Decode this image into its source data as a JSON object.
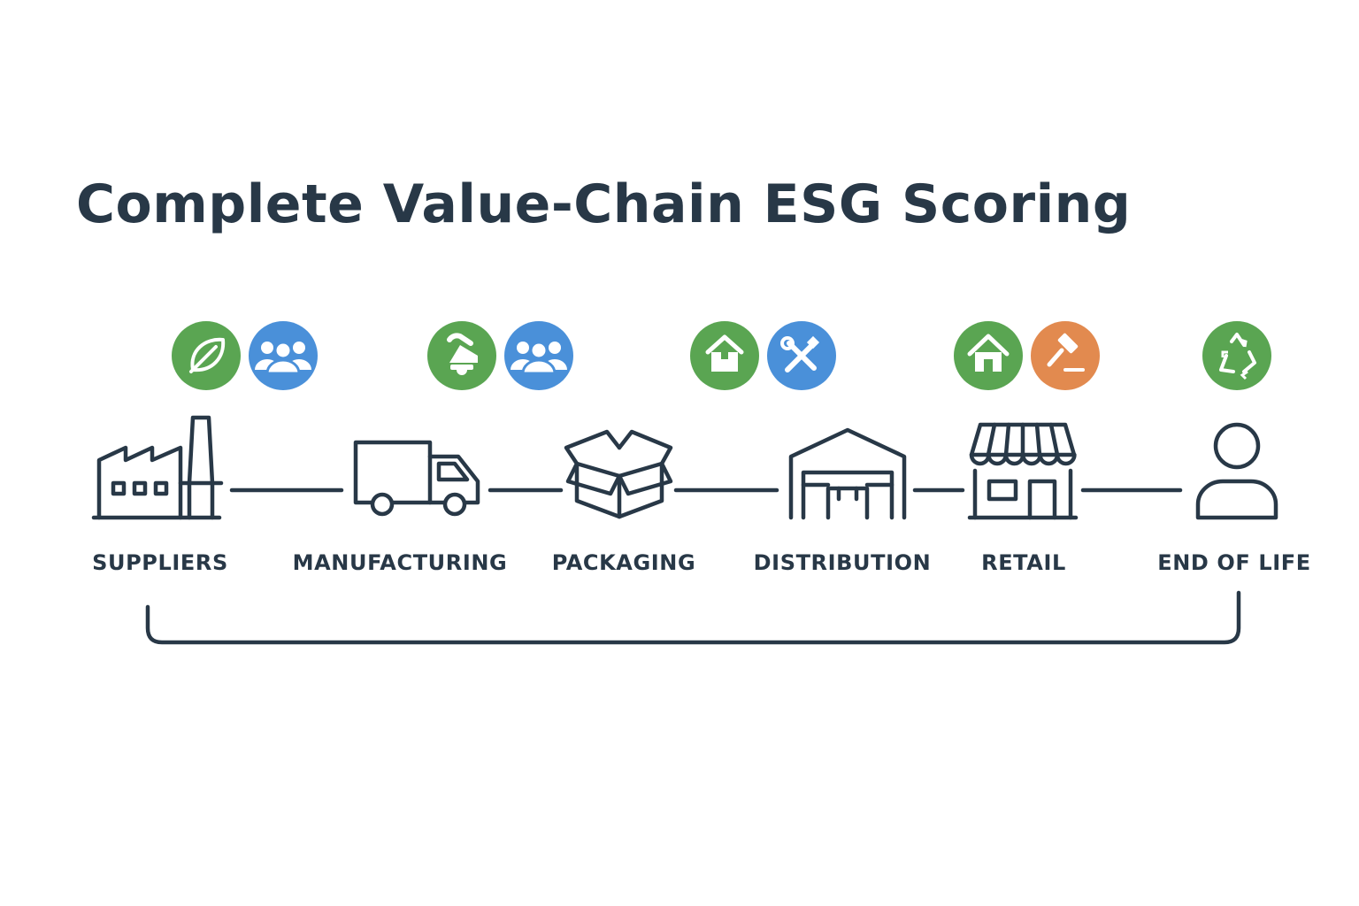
{
  "title": "Complete Value-Chain ESG Scoring",
  "colors": {
    "ink": "#283847",
    "environmental": "#5aa552",
    "social": "#4a90d9",
    "governance": "#e28a4f",
    "background": "#ffffff"
  },
  "stages": [
    {
      "label": "SUPPLIERS",
      "icon": "factory-icon",
      "badges": [
        {
          "category": "environmental",
          "icon": "leaf-icon"
        },
        {
          "category": "social",
          "icon": "people-icon"
        }
      ]
    },
    {
      "label": "MANUFACTURING",
      "icon": "truck-icon",
      "badges": [
        {
          "category": "environmental",
          "icon": "robot-arm-icon"
        },
        {
          "category": "social",
          "icon": "people-icon"
        }
      ]
    },
    {
      "label": "PACKAGING",
      "icon": "open-box-icon",
      "badges": [
        {
          "category": "environmental",
          "icon": "package-home-icon"
        },
        {
          "category": "social",
          "icon": "tools-icon"
        }
      ]
    },
    {
      "label": "DISTRIBUTION",
      "icon": "warehouse-icon",
      "badges": [
        {
          "category": "environmental",
          "icon": "house-icon"
        },
        {
          "category": "governance",
          "icon": "gavel-icon"
        }
      ]
    },
    {
      "label": "RETAIL",
      "icon": "storefront-icon",
      "badges": [
        {
          "category": "environmental",
          "icon": "recycle-icon"
        }
      ]
    },
    {
      "label": "END OF LIFE",
      "icon": "person-icon",
      "badges": []
    }
  ]
}
